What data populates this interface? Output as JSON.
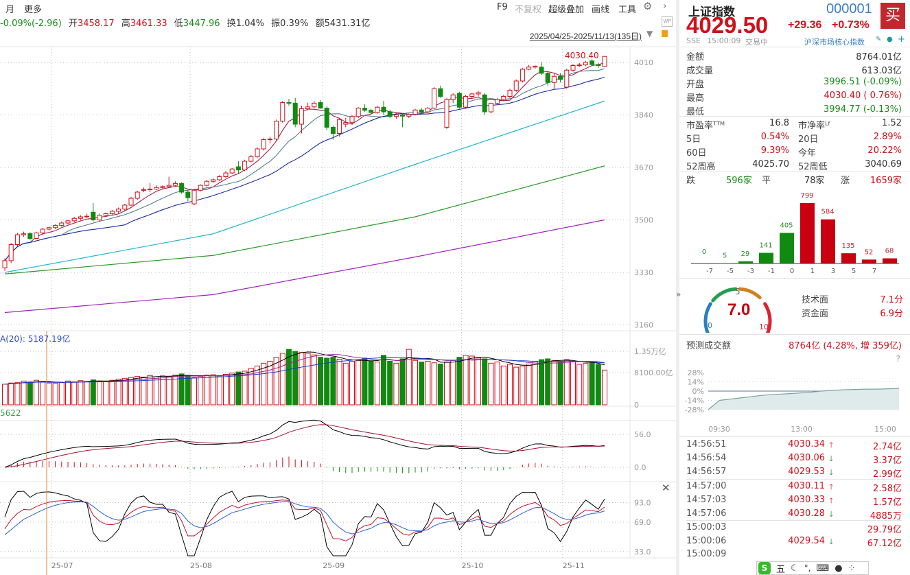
{
  "toolbar": {
    "period": "月",
    "more": "更多",
    "f9": "F9",
    "adjust": "不复权",
    "overlay": "超级叠加",
    "draw": "画线",
    "tools": "工具"
  },
  "quote_bar": {
    "change": "-0.09%(-2.96)",
    "open_label": "开",
    "open": "3458.17",
    "high_label": "高",
    "high": "3461.33",
    "low_label": "低",
    "low": "3447.96",
    "turnover_label": "换",
    "turnover": "1.04%",
    "amp_label": "振",
    "amp": "0.39%",
    "amount_label": "额",
    "amount": "5431.31亿"
  },
  "date_range": "2025/04/25-2025/11/13(135日)",
  "price_label": "4030.40",
  "volume_label": "A(20): 5187.19亿",
  "macd_label": "5622",
  "colors": {
    "up": "#d0101a",
    "down": "#108a10",
    "ma5": "#a0204a",
    "ma10": "#5a7a8a",
    "ma20": "#1a2aa0",
    "ma_cyan": "#20b8d0",
    "ma_green": "#2a9a2a",
    "ma_magenta": "#a020c0",
    "accent_blue": "#2f6fc0"
  },
  "icons": {
    "settings": "gear-icon",
    "next": "chevron-right-icon",
    "wp": "wp-icon",
    "lock": "lock-icon",
    "close": "close-icon",
    "collapse": "double-chevron-right-icon",
    "edit": "pencil-icon",
    "bell": "bell-icon",
    "add": "plus-icon"
  },
  "chart_data": [
    {
      "type": "candlestick",
      "name": "price",
      "y_ticks": [
        4010,
        3840,
        3670,
        3500,
        3330,
        3160
      ],
      "x_ticks": [
        {
          "index": 8,
          "label": "25-07"
        },
        {
          "index": 30,
          "label": "25-08"
        },
        {
          "index": 51,
          "label": "25-09"
        },
        {
          "index": 73,
          "label": "25-10"
        },
        {
          "index": 89,
          "label": "25-11"
        }
      ],
      "grid": true,
      "candles": [
        [
          3345,
          3375,
          3335,
          3368
        ],
        [
          3368,
          3425,
          3360,
          3420
        ],
        [
          3420,
          3458,
          3415,
          3452
        ],
        [
          3452,
          3462,
          3445,
          3455
        ],
        [
          3456,
          3460,
          3435,
          3440
        ],
        [
          3440,
          3462,
          3438,
          3458
        ],
        [
          3458,
          3474,
          3452,
          3470
        ],
        [
          3470,
          3478,
          3465,
          3475
        ],
        [
          3475,
          3486,
          3470,
          3482
        ],
        [
          3482,
          3495,
          3478,
          3490
        ],
        [
          3490,
          3500,
          3486,
          3497
        ],
        [
          3497,
          3510,
          3492,
          3505
        ],
        [
          3505,
          3515,
          3500,
          3510
        ],
        [
          3510,
          3520,
          3506,
          3512
        ],
        [
          3525,
          3555,
          3495,
          3500
        ],
        [
          3500,
          3520,
          3495,
          3515
        ],
        [
          3515,
          3524,
          3510,
          3520
        ],
        [
          3520,
          3532,
          3515,
          3528
        ],
        [
          3528,
          3540,
          3522,
          3535
        ],
        [
          3535,
          3552,
          3530,
          3548
        ],
        [
          3548,
          3575,
          3545,
          3570
        ],
        [
          3570,
          3595,
          3565,
          3590
        ],
        [
          3596,
          3605,
          3590,
          3598
        ],
        [
          3598,
          3620,
          3590,
          3600
        ],
        [
          3600,
          3612,
          3596,
          3605
        ],
        [
          3605,
          3612,
          3600,
          3608
        ],
        [
          3608,
          3640,
          3604,
          3612
        ],
        [
          3612,
          3625,
          3608,
          3618
        ],
        [
          3618,
          3622,
          3585,
          3590
        ],
        [
          3590,
          3598,
          3560,
          3572
        ],
        [
          3552,
          3600,
          3548,
          3596
        ],
        [
          3596,
          3615,
          3592,
          3612
        ],
        [
          3612,
          3630,
          3608,
          3625
        ],
        [
          3625,
          3635,
          3620,
          3630
        ],
        [
          3630,
          3645,
          3626,
          3640
        ],
        [
          3640,
          3658,
          3636,
          3652
        ],
        [
          3652,
          3668,
          3648,
          3665
        ],
        [
          3672,
          3690,
          3650,
          3662
        ],
        [
          3662,
          3695,
          3658,
          3690
        ],
        [
          3690,
          3710,
          3686,
          3705
        ],
        [
          3705,
          3735,
          3700,
          3730
        ],
        [
          3730,
          3765,
          3725,
          3760
        ],
        [
          3760,
          3770,
          3748,
          3762
        ],
        [
          3762,
          3825,
          3758,
          3820
        ],
        [
          3820,
          3885,
          3815,
          3880
        ],
        [
          3880,
          3892,
          3870,
          3878
        ],
        [
          3878,
          3895,
          3800,
          3810
        ],
        [
          3810,
          3870,
          3780,
          3860
        ],
        [
          3860,
          3880,
          3855,
          3866
        ],
        [
          3866,
          3885,
          3862,
          3878
        ],
        [
          3880,
          3888,
          3860,
          3862
        ],
        [
          3862,
          3868,
          3790,
          3800
        ],
        [
          3800,
          3805,
          3760,
          3780
        ],
        [
          3780,
          3830,
          3770,
          3825
        ],
        [
          3810,
          3830,
          3800,
          3815
        ],
        [
          3815,
          3840,
          3808,
          3835
        ],
        [
          3835,
          3865,
          3830,
          3862
        ],
        [
          3862,
          3875,
          3850,
          3855
        ],
        [
          3855,
          3860,
          3842,
          3848
        ],
        [
          3848,
          3870,
          3844,
          3865
        ],
        [
          3865,
          3885,
          3840,
          3850
        ],
        [
          3850,
          3856,
          3830,
          3835
        ],
        [
          3835,
          3848,
          3828,
          3840
        ],
        [
          3840,
          3846,
          3800,
          3836
        ],
        [
          3836,
          3845,
          3830,
          3842
        ],
        [
          3842,
          3860,
          3838,
          3856
        ],
        [
          3856,
          3862,
          3846,
          3850
        ],
        [
          3850,
          3866,
          3846,
          3862
        ],
        [
          3862,
          3930,
          3858,
          3925
        ],
        [
          3925,
          3935,
          3895,
          3900
        ],
        [
          3800,
          3895,
          3795,
          3890
        ],
        [
          3890,
          3910,
          3878,
          3905
        ],
        [
          3910,
          3915,
          3860,
          3865
        ],
        [
          3865,
          3905,
          3860,
          3900
        ],
        [
          3900,
          3912,
          3895,
          3908
        ],
        [
          3908,
          3918,
          3900,
          3912
        ],
        [
          3905,
          3910,
          3840,
          3850
        ],
        [
          3850,
          3880,
          3845,
          3878
        ],
        [
          3878,
          3895,
          3872,
          3890
        ],
        [
          3890,
          3905,
          3885,
          3900
        ],
        [
          3900,
          3925,
          3895,
          3920
        ],
        [
          3920,
          3955,
          3915,
          3950
        ],
        [
          3950,
          3992,
          3945,
          3988
        ],
        [
          3988,
          4002,
          3985,
          3995
        ],
        [
          3995,
          4000,
          3990,
          3998
        ],
        [
          3995,
          4012,
          3970,
          3975
        ],
        [
          3975,
          3980,
          3935,
          3945
        ],
        [
          3945,
          3975,
          3925,
          3965
        ],
        [
          3965,
          3975,
          3945,
          3955
        ],
        [
          3930,
          3990,
          3925,
          3985
        ],
        [
          3985,
          4005,
          3980,
          4000
        ],
        [
          4000,
          4008,
          3995,
          4002
        ],
        [
          4002,
          4015,
          3998,
          4010
        ],
        [
          4015,
          4020,
          4000,
          4003
        ],
        [
          4003,
          4008,
          3992,
          4000
        ],
        [
          3997,
          4030.4,
          3995,
          4029.5
        ]
      ],
      "long_ma": [
        {
          "color": "#20b8d0",
          "points": [
            [
              0,
              3330
            ],
            [
              33,
              3455
            ],
            [
              65,
              3680
            ],
            [
              95,
              3885
            ]
          ]
        },
        {
          "color": "#2a9a2a",
          "points": [
            [
              0,
              3325
            ],
            [
              33,
              3385
            ],
            [
              65,
              3510
            ],
            [
              95,
              3675
            ]
          ]
        },
        {
          "color": "#a020c0",
          "points": [
            [
              0,
              3200
            ],
            [
              33,
              3258
            ],
            [
              65,
              3380
            ],
            [
              95,
              3500
            ]
          ]
        }
      ]
    },
    {
      "type": "bar",
      "name": "volume",
      "unit": "亿",
      "y_ticks": [
        {
          "v": 13500,
          "label": "1.35万亿"
        },
        {
          "v": 8100,
          "label": "8100.00亿"
        },
        {
          "v": 0,
          "label": "0"
        }
      ],
      "values": [
        5200,
        5500,
        5600,
        6000,
        5800,
        6200,
        5900,
        5500,
        5400,
        5600,
        6000,
        5800,
        6100,
        5900,
        6300,
        6000,
        5800,
        6200,
        6500,
        6700,
        6900,
        7200,
        7000,
        7400,
        7100,
        7300,
        7200,
        7500,
        7800,
        7400,
        6900,
        7200,
        7500,
        7600,
        7300,
        7700,
        8000,
        8300,
        8500,
        9200,
        9800,
        10500,
        11000,
        12000,
        13000,
        14000,
        13500,
        13200,
        13000,
        12600,
        12000,
        11800,
        12000,
        11500,
        10500,
        11000,
        11200,
        11800,
        11000,
        10800,
        12500,
        11000,
        10500,
        11600,
        14000,
        11200,
        10800,
        11000,
        10600,
        10300,
        10800,
        11200,
        12000,
        12500,
        12300,
        11800,
        11600,
        10500,
        10800,
        9800,
        10200,
        9500,
        9800,
        10300,
        11000,
        11400,
        11600,
        11200,
        10800,
        11400,
        11000,
        10200,
        10500,
        10600,
        10200,
        8764
      ]
    },
    {
      "type": "line",
      "name": "macd",
      "y_ticks": [
        56.0,
        0.0
      ],
      "tick_labels": [
        "56.0",
        "0.0"
      ]
    },
    {
      "type": "line",
      "name": "kdj",
      "y_ticks": [
        93.0,
        69.0,
        33.0
      ],
      "tick_labels": [
        "93.0",
        "69.0",
        "33.0"
      ]
    },
    {
      "type": "bar",
      "name": "distribution",
      "categories": [
        "<-7",
        "-7~-5",
        "-5~-3",
        "-3~-1",
        "-1~0",
        "0~1",
        "1~3",
        "3~5",
        "5~7",
        ">7"
      ],
      "values": [
        0,
        5,
        29,
        141,
        405,
        799,
        584,
        135,
        52,
        68
      ],
      "x_ticks": [
        "-7",
        "-5",
        "-3",
        "-1",
        "0",
        "1",
        "3",
        "5",
        "7"
      ]
    },
    {
      "type": "area",
      "name": "forecast",
      "y_ticks": [
        "28%",
        "14%",
        "0%",
        "-14%",
        "-28%"
      ],
      "x_ticks": [
        "09:30",
        "13:00",
        "15:00"
      ],
      "values": [
        -28,
        -14,
        -12,
        -10,
        -8,
        -6,
        -5,
        -4,
        -3,
        -2,
        0,
        1,
        2,
        2.5,
        3,
        3,
        3.5,
        4
      ]
    }
  ],
  "stock": {
    "name": "上证指数",
    "code": "000001",
    "buy": "买",
    "price": "4029.50",
    "change": "+29.36",
    "change_pct": "+0.73%",
    "exchange": "SSE",
    "time": "15:00:09",
    "status": "交易中",
    "category": "沪深市场核心指数"
  },
  "stats": [
    {
      "label": "金额",
      "value": "8764.01亿",
      "color": "#333"
    },
    {
      "label": "成交量",
      "value": "613.03亿",
      "color": "#333"
    },
    {
      "label": "开盘",
      "value": "3996.51 (-0.09%)",
      "color": "#1a8a1a"
    },
    {
      "label": "最高",
      "value": "4030.40 ( 0.76%)",
      "color": "#d0101a"
    },
    {
      "label": "最低",
      "value": "3994.77 (-0.13%)",
      "color": "#1a8a1a"
    }
  ],
  "stats2": [
    {
      "l1": "市盈率ᵀᵀᴹ",
      "v1": "16.8",
      "c1": "#333",
      "l2": "市净率ᴸᶠ",
      "v2": "1.52",
      "c2": "#333"
    },
    {
      "l1": "5日",
      "v1": "0.54%",
      "c1": "#d0101a",
      "l2": "20日",
      "v2": "2.89%",
      "c2": "#d0101a"
    },
    {
      "l1": "60日",
      "v1": "9.39%",
      "c1": "#d0101a",
      "l2": "今年",
      "v2": "20.22%",
      "c2": "#d0101a"
    },
    {
      "l1": "52周高",
      "v1": "4025.70",
      "c1": "#333",
      "l2": "52周低",
      "v2": "3040.69",
      "c2": "#333"
    }
  ],
  "breadth": {
    "down_label": "跌",
    "down": "596家",
    "flat_label": "平",
    "flat": "78家",
    "up_label": "涨",
    "up": "1659家"
  },
  "gauge": {
    "score": "7.0",
    "score_value": 7.0,
    "min": "0",
    "mid": "5",
    "max": "10",
    "tech_label": "技术面",
    "tech": "7.1分",
    "fund_label": "资金面",
    "fund": "6.9分"
  },
  "forecast": {
    "label": "预测成交额",
    "value": "8764亿 (4.28%, 增 359亿)",
    "help": "?"
  },
  "ticks": [
    {
      "t": "14:56:51",
      "p": "4030.34",
      "d": "up",
      "a": "2.74亿"
    },
    {
      "t": "14:56:54",
      "p": "4030.06",
      "d": "down",
      "a": "3.37亿"
    },
    {
      "t": "14:56:57",
      "p": "4029.53",
      "d": "down",
      "a": "2.99亿"
    },
    {
      "t": "14:57:00",
      "p": "4030.11",
      "d": "up",
      "a": "2.58亿"
    },
    {
      "t": "14:57:03",
      "p": "4030.33",
      "d": "up",
      "a": "1.57亿"
    },
    {
      "t": "14:57:06",
      "p": "4030.28",
      "d": "down",
      "a": "4885万"
    },
    {
      "t": "15:00:03",
      "p": "",
      "d": "",
      "a": "29.79亿"
    },
    {
      "t": "15:00:06",
      "p": "4029.54",
      "d": "down",
      "a": "67.12亿"
    },
    {
      "t": "15:00:09",
      "p": "",
      "d": "",
      "a": ""
    }
  ],
  "ime": {
    "mode": "五"
  }
}
